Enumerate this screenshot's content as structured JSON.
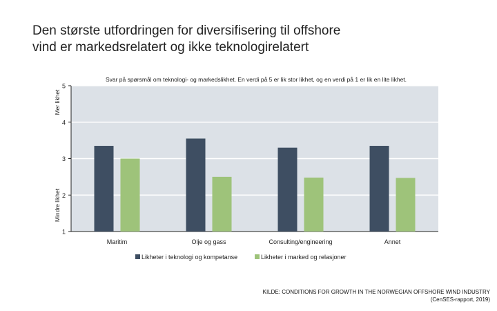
{
  "title_lines": [
    "Den største utfordringen for diversifisering til offshore",
    "vind er markedsrelatert og ikke teknologirelatert"
  ],
  "chart_data": {
    "type": "bar",
    "subtitle": "Svar på spørsmål om teknologi- og markedslikhet. En verdi på 5 er lik stor likhet, og en verdi på 1 er lik en lite likhet.",
    "categories": [
      "Maritim",
      "Olje og gass",
      "Consulting/engineering",
      "Annet"
    ],
    "series": [
      {
        "name": "Likheter i teknologi og kompetanse",
        "color": "#3e4e62",
        "values": [
          3.35,
          3.55,
          3.3,
          3.35
        ]
      },
      {
        "name": "Likheter i marked og relasjoner",
        "color": "#9ec37a",
        "values": [
          3.0,
          2.5,
          2.48,
          2.47
        ]
      }
    ],
    "ylim": [
      1,
      5
    ],
    "yticks": [
      1,
      2,
      3,
      4,
      5
    ],
    "ylabel_top": "Mer likhet",
    "ylabel_bottom": "Mindre likhet",
    "grid": true,
    "background": "#dce1e7",
    "legend_position": "bottom"
  },
  "source_lines": [
    "KILDE: CONDITIONS FOR GROWTH IN THE NORWEGIAN OFFSHORE WIND INDUSTRY",
    "(CenSES-rapport, 2019)"
  ]
}
